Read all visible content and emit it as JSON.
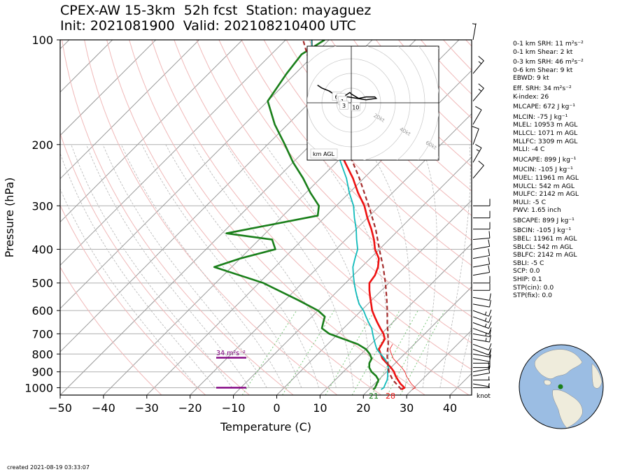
{
  "header": {
    "title_line1": "CPEX-AW 15-3km  52h fcst  Station: mayaguez",
    "title_line2": "Init: 2021081900  Valid: 2021082104­00 UTC"
  },
  "footer": {
    "created": "created 2021-08-19 03:33:07"
  },
  "indices": [
    {
      "text": "0-1 km SRH: 11 m²s⁻²",
      "gap": false
    },
    {
      "text": "0-1 km Shear: 2 kt",
      "gap": false
    },
    {
      "text": "0-3 km SRH: 46 m²s⁻²",
      "gap": true
    },
    {
      "text": "0-6 km Shear: 9 kt",
      "gap": false
    },
    {
      "text": "EBWD: 9 kt",
      "gap": false
    },
    {
      "text": "Eff. SRH: 34 m²s⁻²",
      "gap": true
    },
    {
      "text": "K-index: 26",
      "gap": false
    },
    {
      "text": "MLCAPE: 672 J kg⁻¹",
      "gap": true
    },
    {
      "text": "MLCIN: -75 J kg⁻¹",
      "gap": true
    },
    {
      "text": "MLEL: 10953 m AGL",
      "gap": false
    },
    {
      "text": "MLLCL: 1071 m AGL",
      "gap": false
    },
    {
      "text": "MLLFC: 3309 m AGL",
      "gap": false
    },
    {
      "text": "MLLI: -4 C",
      "gap": false
    },
    {
      "text": "MUCAPE: 899 J kg⁻¹",
      "gap": true
    },
    {
      "text": "MUCIN: -105 J kg⁻¹",
      "gap": true
    },
    {
      "text": "MUEL: 11961 m AGL",
      "gap": false
    },
    {
      "text": "MULCL: 542 m AGL",
      "gap": false
    },
    {
      "text": "MULFC: 2142 m AGL",
      "gap": false
    },
    {
      "text": "MULI: -5 C",
      "gap": false
    },
    {
      "text": "PWV: 1.65 inch",
      "gap": false
    },
    {
      "text": "SBCAPE: 899 J kg⁻¹",
      "gap": true
    },
    {
      "text": "SBCIN: -105 J kg⁻¹",
      "gap": true
    },
    {
      "text": "SBEL: 11961 m AGL",
      "gap": false
    },
    {
      "text": "SBLCL: 542 m AGL",
      "gap": false
    },
    {
      "text": "SBLFC: 2142 m AGL",
      "gap": false
    },
    {
      "text": "SBLI: -5 C",
      "gap": false
    },
    {
      "text": "SCP: 0.0",
      "gap": false
    },
    {
      "text": "SHIP: 0.1",
      "gap": false
    },
    {
      "text": "STP(cin): 0.0",
      "gap": false
    },
    {
      "text": "STP(fix): 0.0",
      "gap": false
    }
  ],
  "hodograph": {
    "unit_label": "km AGL",
    "ring_labels": [
      "20kt",
      "40kt",
      "60kt",
      "80kt"
    ],
    "height_labels": [
      "6",
      "2",
      "1",
      "3",
      "10"
    ],
    "trace_kt": [
      [
        -23,
        12
      ],
      [
        -20,
        10
      ],
      [
        -15,
        8
      ],
      [
        -12,
        6
      ],
      [
        -9,
        5
      ],
      [
        -4,
        5
      ],
      [
        -1,
        7
      ],
      [
        0,
        6
      ],
      [
        5,
        3
      ],
      [
        10,
        4
      ],
      [
        16,
        4
      ],
      [
        17,
        3
      ],
      [
        10,
        2
      ],
      [
        4,
        3
      ],
      [
        -2,
        4
      ],
      [
        -5,
        4
      ]
    ],
    "label_positions_kt": [
      [
        -10,
        4
      ],
      [
        -7,
        3
      ],
      [
        -6,
        1
      ],
      [
        -5,
        -2
      ],
      [
        3,
        -3
      ]
    ]
  },
  "globe": {
    "ocean_color": "#9bbde3",
    "land_color": "#efecdc",
    "station_marker_color": "#1a7f1a"
  },
  "srh_annotation": "34 m²s⁻²",
  "surface_labels": {
    "dewpoint": "21",
    "temperature": "28"
  },
  "barb_unit": "knot",
  "chart_data": {
    "type": "line",
    "title": "CPEX-AW 15-3km  52h fcst  Station: mayaguez",
    "xlabel": "Temperature (C)",
    "ylabel": "Pressure (hPa)",
    "xlim": [
      -50,
      45
    ],
    "ylim": [
      1050,
      100
    ],
    "y_scale": "log",
    "skew": true,
    "x_ticks": [
      -50,
      -40,
      -30,
      -20,
      -10,
      0,
      10,
      20,
      30,
      40
    ],
    "y_ticks": [
      100,
      200,
      300,
      400,
      500,
      600,
      700,
      800,
      900,
      1000
    ],
    "colors": {
      "temperature": "#ee1111",
      "dewpoint": "#1a7f1a",
      "virtual_temperature": "#11bbbb",
      "parcel": "#a42c2c",
      "isotherm": "#9a9a9a",
      "dry_adiabat": "#f0b8b8",
      "moist_adiabat": "#b5b5b5",
      "mixing_ratio": "#7cc77c",
      "srh_layer": "#800080"
    },
    "series": [
      {
        "key": "temperature",
        "points": [
          [
            1012,
            27.5
          ],
          [
            1000,
            27.8
          ],
          [
            975,
            26
          ],
          [
            950,
            24.5
          ],
          [
            925,
            23
          ],
          [
            900,
            21.7
          ],
          [
            875,
            20
          ],
          [
            850,
            18
          ],
          [
            825,
            16
          ],
          [
            800,
            14.5
          ],
          [
            775,
            13
          ],
          [
            750,
            12.5
          ],
          [
            725,
            12
          ],
          [
            700,
            10.5
          ],
          [
            675,
            8.5
          ],
          [
            650,
            6.5
          ],
          [
            625,
            4.5
          ],
          [
            600,
            2.5
          ],
          [
            575,
            0.8
          ],
          [
            550,
            -1
          ],
          [
            525,
            -2.8
          ],
          [
            500,
            -4.5
          ],
          [
            475,
            -5
          ],
          [
            450,
            -6.2
          ],
          [
            425,
            -8
          ],
          [
            400,
            -11
          ],
          [
            375,
            -13.5
          ],
          [
            350,
            -16.5
          ],
          [
            325,
            -20
          ],
          [
            300,
            -23.5
          ],
          [
            275,
            -28
          ],
          [
            250,
            -32.5
          ],
          [
            225,
            -38
          ],
          [
            200,
            -44
          ],
          [
            175,
            -50.5
          ],
          [
            150,
            -58
          ],
          [
            125,
            -66
          ],
          [
            100,
            -74
          ]
        ]
      },
      {
        "key": "virtual_temperature",
        "points": [
          [
            1012,
            22.8
          ],
          [
            1000,
            23
          ],
          [
            975,
            22.5
          ],
          [
            950,
            22
          ],
          [
            925,
            21.2
          ],
          [
            900,
            20.2
          ],
          [
            875,
            19.4
          ],
          [
            850,
            18.2
          ],
          [
            825,
            16.5
          ],
          [
            800,
            14.5
          ],
          [
            775,
            12.5
          ],
          [
            750,
            11
          ],
          [
            725,
            9.5
          ],
          [
            700,
            8
          ],
          [
            675,
            6.5
          ],
          [
            650,
            4.5
          ],
          [
            625,
            2.5
          ],
          [
            600,
            0.5
          ],
          [
            575,
            -2
          ],
          [
            550,
            -4
          ],
          [
            525,
            -6
          ],
          [
            500,
            -8
          ],
          [
            475,
            -10
          ],
          [
            450,
            -12
          ],
          [
            425,
            -13.5
          ],
          [
            400,
            -15
          ],
          [
            375,
            -17.5
          ],
          [
            350,
            -20
          ],
          [
            325,
            -23
          ],
          [
            300,
            -26
          ],
          [
            275,
            -30
          ],
          [
            250,
            -34
          ],
          [
            225,
            -39
          ],
          [
            200,
            -44.5
          ],
          [
            175,
            -51
          ],
          [
            150,
            -58.5
          ],
          [
            125,
            -66
          ],
          [
            100,
            -74
          ]
        ]
      },
      {
        "key": "dewpoint",
        "points": [
          [
            1012,
            21
          ],
          [
            1000,
            21
          ],
          [
            975,
            20.5
          ],
          [
            950,
            20
          ],
          [
            925,
            18.5
          ],
          [
            900,
            16.5
          ],
          [
            875,
            15
          ],
          [
            850,
            14
          ],
          [
            825,
            13.5
          ],
          [
            800,
            12
          ],
          [
            775,
            10
          ],
          [
            750,
            7
          ],
          [
            700,
            -2
          ],
          [
            675,
            -5
          ],
          [
            650,
            -6
          ],
          [
            625,
            -7
          ],
          [
            600,
            -10
          ],
          [
            560,
            -17
          ],
          [
            500,
            -29
          ],
          [
            450,
            -44
          ],
          [
            425,
            -40
          ],
          [
            400,
            -34
          ],
          [
            375,
            -37
          ],
          [
            360,
            -49
          ],
          [
            320,
            -32
          ],
          [
            300,
            -34
          ],
          [
            275,
            -39
          ],
          [
            250,
            -44
          ],
          [
            225,
            -50
          ],
          [
            200,
            -56
          ],
          [
            175,
            -63
          ],
          [
            150,
            -70
          ],
          [
            125,
            -72
          ],
          [
            110,
            -73
          ],
          [
            100,
            -71
          ]
        ]
      },
      {
        "key": "parcel",
        "points": [
          [
            1012,
            27.5
          ],
          [
            960,
            24
          ],
          [
            950,
            23.3
          ],
          [
            900,
            20.5
          ],
          [
            850,
            18.2
          ],
          [
            800,
            16
          ],
          [
            750,
            14
          ],
          [
            700,
            11.5
          ],
          [
            650,
            8.8
          ],
          [
            600,
            6
          ],
          [
            550,
            2.8
          ],
          [
            500,
            -0.8
          ],
          [
            450,
            -5
          ],
          [
            400,
            -10
          ],
          [
            350,
            -15.5
          ],
          [
            300,
            -22.5
          ],
          [
            250,
            -31
          ],
          [
            200,
            -42
          ],
          [
            170,
            -50
          ],
          [
            150,
            -57
          ],
          [
            125,
            -66
          ],
          [
            100,
            -76
          ]
        ]
      }
    ],
    "srh_layers_hpa": [
      {
        "label": "34 m²s⁻²",
        "pressures": [
          1000,
          820
        ]
      }
    ],
    "wind_barbs": [
      {
        "p": 1000,
        "speed_kt": 5,
        "dir_deg": 90
      },
      {
        "p": 975,
        "speed_kt": 5,
        "dir_deg": 100
      },
      {
        "p": 950,
        "speed_kt": 5,
        "dir_deg": 90
      },
      {
        "p": 925,
        "speed_kt": 10,
        "dir_deg": 80
      },
      {
        "p": 900,
        "speed_kt": 10,
        "dir_deg": 80
      },
      {
        "p": 875,
        "speed_kt": 10,
        "dir_deg": 90
      },
      {
        "p": 850,
        "speed_kt": 10,
        "dir_deg": 90
      },
      {
        "p": 825,
        "speed_kt": 10,
        "dir_deg": 100
      },
      {
        "p": 800,
        "speed_kt": 10,
        "dir_deg": 100
      },
      {
        "p": 775,
        "speed_kt": 10,
        "dir_deg": 110
      },
      {
        "p": 750,
        "speed_kt": 10,
        "dir_deg": 110
      },
      {
        "p": 725,
        "speed_kt": 15,
        "dir_deg": 100
      },
      {
        "p": 700,
        "speed_kt": 15,
        "dir_deg": 100
      },
      {
        "p": 675,
        "speed_kt": 10,
        "dir_deg": 110
      },
      {
        "p": 650,
        "speed_kt": 15,
        "dir_deg": 110
      },
      {
        "p": 625,
        "speed_kt": 15,
        "dir_deg": 110
      },
      {
        "p": 600,
        "speed_kt": 15,
        "dir_deg": 110
      },
      {
        "p": 575,
        "speed_kt": 10,
        "dir_deg": 100
      },
      {
        "p": 550,
        "speed_kt": 10,
        "dir_deg": 100
      },
      {
        "p": 525,
        "speed_kt": 10,
        "dir_deg": 90
      },
      {
        "p": 500,
        "speed_kt": 10,
        "dir_deg": 90
      },
      {
        "p": 475,
        "speed_kt": 10,
        "dir_deg": 80
      },
      {
        "p": 450,
        "speed_kt": 10,
        "dir_deg": 80
      },
      {
        "p": 425,
        "speed_kt": 10,
        "dir_deg": 80
      },
      {
        "p": 400,
        "speed_kt": 10,
        "dir_deg": 80
      },
      {
        "p": 375,
        "speed_kt": 10,
        "dir_deg": 85
      },
      {
        "p": 350,
        "speed_kt": 10,
        "dir_deg": 90
      },
      {
        "p": 325,
        "speed_kt": 10,
        "dir_deg": 90
      },
      {
        "p": 300,
        "speed_kt": 10,
        "dir_deg": 90
      },
      {
        "p": 250,
        "speed_kt": 10,
        "dir_deg": 40
      },
      {
        "p": 225,
        "speed_kt": 15,
        "dir_deg": 30
      },
      {
        "p": 200,
        "speed_kt": 10,
        "dir_deg": 20
      },
      {
        "p": 175,
        "speed_kt": 10,
        "dir_deg": 30
      },
      {
        "p": 150,
        "speed_kt": 15,
        "dir_deg": 40
      },
      {
        "p": 125,
        "speed_kt": 15,
        "dir_deg": 40
      },
      {
        "p": 100,
        "speed_kt": 5,
        "dir_deg": 10
      }
    ]
  }
}
